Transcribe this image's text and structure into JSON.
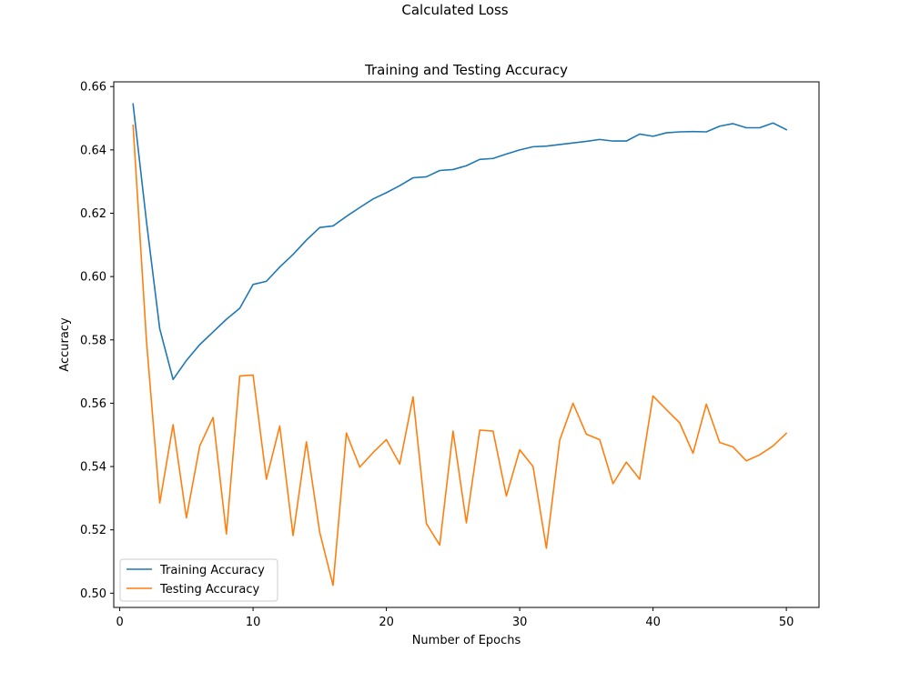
{
  "figure": {
    "suptitle": "Calculated Loss"
  },
  "chart_data": {
    "type": "line",
    "title": "Training and Testing Accuracy",
    "xlabel": "Number of Epochs",
    "ylabel": "Accuracy",
    "xlim": [
      -0.45,
      52.45
    ],
    "ylim": [
      0.4955,
      0.6615
    ],
    "xticks": [
      0,
      10,
      20,
      30,
      40,
      50
    ],
    "yticks": [
      0.5,
      0.52,
      0.54,
      0.56,
      0.58,
      0.6,
      0.62,
      0.64,
      0.66
    ],
    "xtick_labels": [
      "0",
      "10",
      "20",
      "30",
      "40",
      "50"
    ],
    "ytick_labels": [
      "0.50",
      "0.52",
      "0.54",
      "0.56",
      "0.58",
      "0.60",
      "0.62",
      "0.64",
      "0.66"
    ],
    "grid": false,
    "legend_position": "lower-left",
    "x": [
      1,
      2,
      3,
      4,
      5,
      6,
      7,
      8,
      9,
      10,
      11,
      12,
      13,
      14,
      15,
      16,
      17,
      18,
      19,
      20,
      21,
      22,
      23,
      24,
      25,
      26,
      27,
      28,
      29,
      30,
      31,
      32,
      33,
      34,
      35,
      36,
      37,
      38,
      39,
      40,
      41,
      42,
      43,
      44,
      45,
      46,
      47,
      48,
      49,
      50
    ],
    "series": [
      {
        "name": "Training Accuracy",
        "color": "#1f77b4",
        "values": [
          0.6545,
          0.6175,
          0.5835,
          0.5675,
          0.5735,
          0.5785,
          0.5825,
          0.5865,
          0.59,
          0.5975,
          0.5985,
          0.603,
          0.607,
          0.6115,
          0.6155,
          0.616,
          0.619,
          0.6218,
          0.6245,
          0.6265,
          0.6287,
          0.6312,
          0.6315,
          0.6335,
          0.6338,
          0.635,
          0.637,
          0.6373,
          0.6387,
          0.64,
          0.641,
          0.6412,
          0.6417,
          0.6422,
          0.6427,
          0.6433,
          0.6428,
          0.6428,
          0.645,
          0.6443,
          0.6454,
          0.6457,
          0.6458,
          0.6457,
          0.6475,
          0.6483,
          0.647,
          0.647,
          0.6485,
          0.6464
        ]
      },
      {
        "name": "Testing Accuracy",
        "color": "#ff7f0e",
        "values": [
          0.6478,
          0.58,
          0.5285,
          0.5532,
          0.5238,
          0.5465,
          0.5555,
          0.5187,
          0.5686,
          0.5689,
          0.536,
          0.5528,
          0.5182,
          0.5478,
          0.5192,
          0.5025,
          0.5506,
          0.5398,
          0.5444,
          0.5485,
          0.5408,
          0.562,
          0.522,
          0.5152,
          0.5512,
          0.5222,
          0.5515,
          0.5512,
          0.5307,
          0.5453,
          0.54,
          0.5142,
          0.5483,
          0.56,
          0.5502,
          0.5485,
          0.5346,
          0.5414,
          0.536,
          0.5623,
          0.558,
          0.5538,
          0.5442,
          0.5597,
          0.5476,
          0.5462,
          0.5418,
          0.5437,
          0.5465,
          0.5505
        ]
      }
    ]
  }
}
